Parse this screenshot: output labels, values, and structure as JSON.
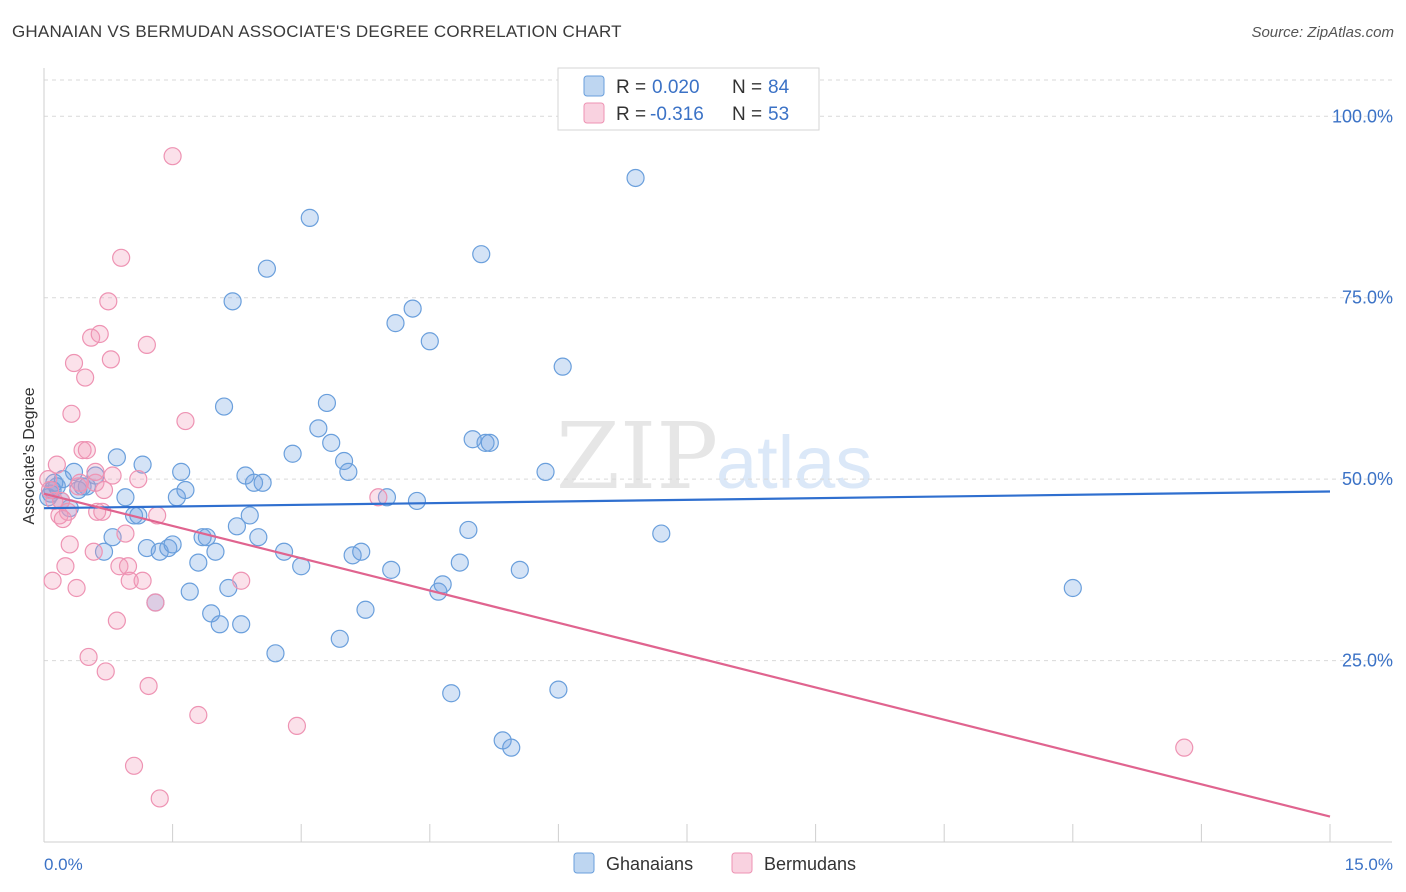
{
  "title": "GHANAIAN VS BERMUDAN ASSOCIATE'S DEGREE CORRELATION CHART",
  "source": "Source: ZipAtlas.com",
  "watermark": {
    "zip": "ZIP",
    "atlas": "atlas"
  },
  "colors": {
    "blue": "#6fa3e0",
    "blue_line": "#2f6fcf",
    "pink": "#f29bbb",
    "pink_line": "#e0648f",
    "axis_text": "#3b72c6",
    "grid": "#d9d9d9"
  },
  "legend": {
    "rows": [
      {
        "r_label": "R =",
        "r_value": "0.020",
        "n_label": "N =",
        "n_value": "84"
      },
      {
        "r_label": "R =",
        "r_value": "-0.316",
        "n_label": "N =",
        "n_value": "53"
      }
    ]
  },
  "chart_data": {
    "type": "scatter",
    "title": "GHANAIAN VS BERMUDAN ASSOCIATE'S DEGREE CORRELATION CHART",
    "xlabel": "",
    "ylabel": "Associate's Degree",
    "xlim": [
      0,
      15
    ],
    "ylim": [
      0,
      105
    ],
    "x_tick_labels": [
      "0.0%",
      "15.0%"
    ],
    "y_ticks": [
      25,
      50,
      75,
      100
    ],
    "y_tick_labels": [
      "25.0%",
      "50.0%",
      "75.0%",
      "100.0%"
    ],
    "grid": "horizontal dashed",
    "bottom_legend": [
      "Ghanaians",
      "Bermudans"
    ],
    "series": [
      {
        "name": "Ghanaians",
        "trend": {
          "x": [
            0,
            15
          ],
          "y": [
            46.0,
            48.3
          ]
        },
        "points": [
          [
            0.05,
            47.5
          ],
          [
            0.1,
            48.5
          ],
          [
            0.15,
            49.0
          ],
          [
            0.2,
            47.0
          ],
          [
            0.3,
            46.0
          ],
          [
            0.35,
            51.0
          ],
          [
            0.45,
            49.0
          ],
          [
            0.5,
            49.0
          ],
          [
            0.6,
            50.5
          ],
          [
            0.7,
            40.0
          ],
          [
            0.8,
            42.0
          ],
          [
            0.85,
            53.0
          ],
          [
            0.95,
            47.5
          ],
          [
            1.05,
            45.0
          ],
          [
            1.1,
            45.0
          ],
          [
            1.15,
            52.0
          ],
          [
            1.2,
            40.5
          ],
          [
            1.3,
            33.0
          ],
          [
            1.35,
            40.0
          ],
          [
            1.45,
            40.5
          ],
          [
            1.5,
            41.0
          ],
          [
            1.55,
            47.5
          ],
          [
            1.6,
            51.0
          ],
          [
            1.65,
            48.5
          ],
          [
            1.7,
            34.5
          ],
          [
            1.8,
            38.5
          ],
          [
            1.85,
            42.0
          ],
          [
            1.9,
            42.0
          ],
          [
            1.95,
            31.5
          ],
          [
            2.0,
            40.0
          ],
          [
            2.05,
            30.0
          ],
          [
            2.1,
            60.0
          ],
          [
            2.15,
            35.0
          ],
          [
            2.2,
            74.5
          ],
          [
            2.25,
            43.5
          ],
          [
            2.3,
            30.0
          ],
          [
            2.35,
            50.5
          ],
          [
            2.4,
            45.0
          ],
          [
            2.45,
            49.5
          ],
          [
            2.5,
            42.0
          ],
          [
            2.55,
            49.5
          ],
          [
            2.6,
            79.0
          ],
          [
            2.7,
            26.0
          ],
          [
            2.8,
            40.0
          ],
          [
            2.9,
            53.5
          ],
          [
            3.0,
            38.0
          ],
          [
            3.1,
            86.0
          ],
          [
            3.2,
            57.0
          ],
          [
            3.3,
            60.5
          ],
          [
            3.35,
            55.0
          ],
          [
            3.45,
            28.0
          ],
          [
            3.5,
            52.5
          ],
          [
            3.55,
            51.0
          ],
          [
            3.6,
            39.5
          ],
          [
            3.7,
            40.0
          ],
          [
            3.75,
            32.0
          ],
          [
            4.0,
            47.5
          ],
          [
            4.05,
            37.5
          ],
          [
            4.1,
            71.5
          ],
          [
            4.3,
            73.5
          ],
          [
            4.35,
            47.0
          ],
          [
            4.5,
            69.0
          ],
          [
            4.6,
            34.5
          ],
          [
            4.65,
            35.5
          ],
          [
            4.75,
            20.5
          ],
          [
            4.85,
            38.5
          ],
          [
            4.95,
            43.0
          ],
          [
            5.0,
            55.5
          ],
          [
            5.1,
            81.0
          ],
          [
            5.15,
            55.0
          ],
          [
            5.2,
            55.0
          ],
          [
            5.35,
            14.0
          ],
          [
            5.45,
            13.0
          ],
          [
            5.55,
            37.5
          ],
          [
            5.85,
            51.0
          ],
          [
            6.0,
            21.0
          ],
          [
            6.05,
            65.5
          ],
          [
            6.9,
            91.5
          ],
          [
            7.2,
            42.5
          ],
          [
            12.0,
            35.0
          ],
          [
            0.08,
            48.0
          ],
          [
            0.12,
            49.5
          ],
          [
            0.22,
            50.0
          ],
          [
            0.4,
            48.5
          ]
        ]
      },
      {
        "name": "Bermudans",
        "trend": {
          "x": [
            0,
            15
          ],
          "y": [
            48.0,
            3.5
          ]
        },
        "points": [
          [
            0.05,
            50.0
          ],
          [
            0.1,
            36.0
          ],
          [
            0.12,
            47.0
          ],
          [
            0.15,
            52.0
          ],
          [
            0.2,
            47.0
          ],
          [
            0.25,
            38.0
          ],
          [
            0.28,
            45.5
          ],
          [
            0.3,
            41.0
          ],
          [
            0.32,
            59.0
          ],
          [
            0.35,
            66.0
          ],
          [
            0.38,
            35.0
          ],
          [
            0.4,
            49.0
          ],
          [
            0.45,
            54.0
          ],
          [
            0.48,
            64.0
          ],
          [
            0.5,
            54.0
          ],
          [
            0.52,
            25.5
          ],
          [
            0.55,
            69.5
          ],
          [
            0.58,
            40.0
          ],
          [
            0.6,
            49.5
          ],
          [
            0.62,
            45.5
          ],
          [
            0.65,
            70.0
          ],
          [
            0.7,
            48.5
          ],
          [
            0.72,
            23.5
          ],
          [
            0.75,
            74.5
          ],
          [
            0.78,
            66.5
          ],
          [
            0.8,
            50.5
          ],
          [
            0.85,
            30.5
          ],
          [
            0.88,
            38.0
          ],
          [
            0.9,
            80.5
          ],
          [
            0.95,
            42.5
          ],
          [
            0.98,
            38.0
          ],
          [
            1.0,
            36.0
          ],
          [
            1.05,
            10.5
          ],
          [
            1.1,
            50.0
          ],
          [
            1.15,
            36.0
          ],
          [
            1.2,
            68.5
          ],
          [
            1.22,
            21.5
          ],
          [
            1.3,
            33.0
          ],
          [
            1.32,
            45.0
          ],
          [
            1.35,
            6.0
          ],
          [
            1.5,
            94.5
          ],
          [
            1.65,
            58.0
          ],
          [
            1.8,
            17.5
          ],
          [
            2.3,
            36.0
          ],
          [
            2.95,
            16.0
          ],
          [
            3.9,
            47.5
          ],
          [
            13.3,
            13.0
          ],
          [
            0.07,
            48.5
          ],
          [
            0.18,
            45.0
          ],
          [
            0.22,
            44.5
          ],
          [
            0.42,
            49.5
          ],
          [
            0.6,
            51.0
          ],
          [
            0.68,
            45.5
          ]
        ]
      }
    ]
  }
}
